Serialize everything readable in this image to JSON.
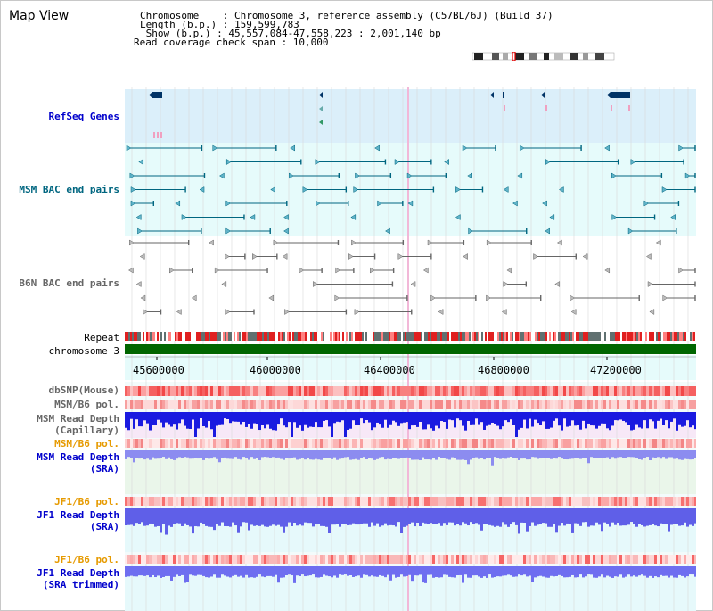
{
  "header": {
    "title": "Map View",
    "info_lines": [
      "Chromosome    : Chromosome 3, reference assembly (C57BL/6J) (Build 37)",
      "Length (b.p.) : 159,599,783",
      " Show (b.p.) : 45,557,084-47,558,223 : 2,001,140 bp",
      "Read coverage check span : 10,000"
    ]
  },
  "colors": {
    "refseq": "#0000cc",
    "msm_bac": "#006680",
    "b6n_bac": "#666666",
    "pol_orange": "#e69a00",
    "read_depth_blue": "#2b2bd8",
    "chromosome": "#006600"
  },
  "tracks": {
    "refseq": "RefSeq Genes",
    "msm_bac": "MSM BAC end pairs",
    "b6n_bac": "B6N BAC end pairs",
    "repeat": "Repeat",
    "chromosome": "chromosome 3",
    "dbsnp": "dbSNP(Mouse)",
    "msm_b6_pol_1": "MSM/B6 pol.",
    "msm_read_depth_cap_1": "MSM Read Depth",
    "msm_read_depth_cap_2": "(Capillary)",
    "msm_b6_pol_2": "MSM/B6 pol.",
    "msm_read_depth_sra_1": "MSM Read Depth",
    "msm_read_depth_sra_2": "(SRA)",
    "jf1_b6_pol_1": "JF1/B6 pol.",
    "jf1_read_depth_sra_1": "JF1 Read Depth",
    "jf1_read_depth_sra_2": "(SRA)",
    "jf1_b6_pol_2": "JF1/B6 pol.",
    "jf1_read_depth_trim_1": "JF1 Read Depth",
    "jf1_read_depth_trim_2": "(SRA trimmed)"
  },
  "axis": {
    "ticks": [
      "45600000",
      "46000000",
      "46400000",
      "46800000",
      "47200000"
    ]
  }
}
